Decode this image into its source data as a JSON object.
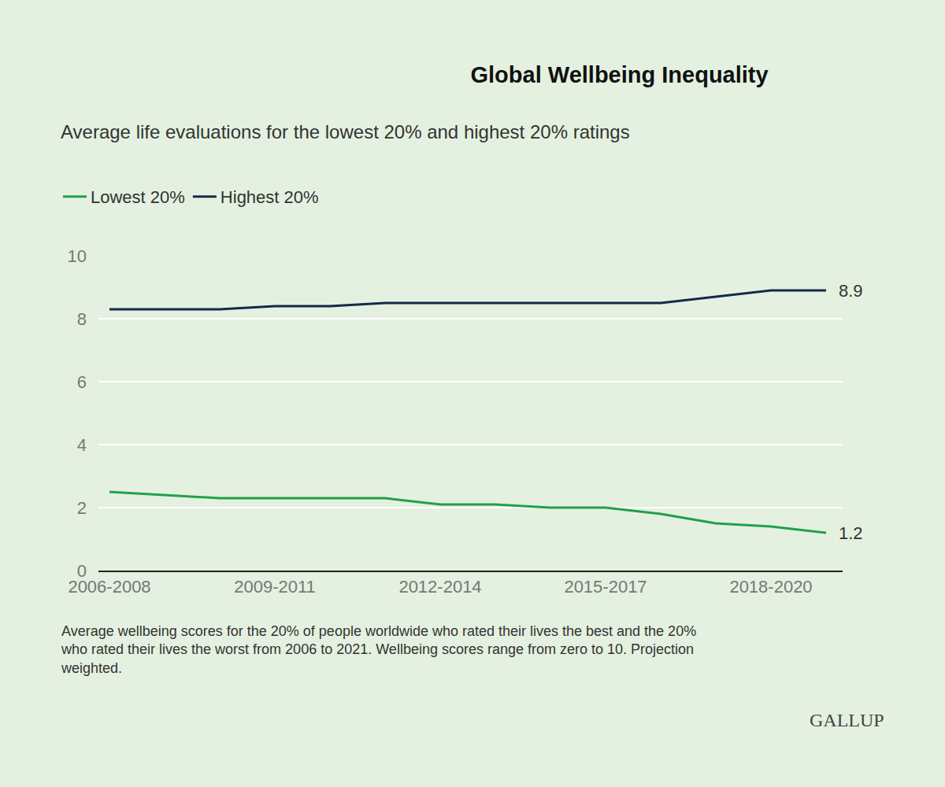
{
  "chart_data": {
    "type": "line",
    "title": "Global Wellbeing Inequality",
    "subtitle": "Average life evaluations for the lowest 20% and highest 20% ratings",
    "note": [
      "Average wellbeing scores for the 20% of people worldwide who rated their lives the best and the 20%",
      "who rated their lives the worst from 2006 to 2021. Wellbeing scores range from zero to 10. Projection",
      "weighted."
    ],
    "source": "GALLUP",
    "categories": [
      "2006-2008",
      null,
      null,
      "2009-2011",
      null,
      null,
      "2012-2014",
      null,
      null,
      "2015-2017",
      null,
      null,
      "2018-2020",
      null
    ],
    "series": [
      {
        "name": "Lowest 20%",
        "color": "#22a04b",
        "values": [
          2.5,
          2.4,
          2.3,
          2.3,
          2.3,
          2.3,
          2.1,
          2.1,
          2.0,
          2.0,
          1.8,
          1.5,
          1.4,
          1.2
        ]
      },
      {
        "name": "Highest 20%",
        "color": "#14284b",
        "values": [
          8.3,
          8.3,
          8.3,
          8.4,
          8.4,
          8.5,
          8.5,
          8.5,
          8.5,
          8.5,
          8.5,
          8.7,
          8.9,
          8.9
        ]
      }
    ],
    "annotations": [
      {
        "text": "8.9",
        "series": "Highest 20%"
      },
      {
        "text": "1.2",
        "series": "Lowest 20%"
      }
    ],
    "ylim": [
      0,
      10
    ],
    "yticks": [
      0,
      2,
      4,
      6,
      8,
      10
    ],
    "grid": true,
    "legend": "top-left"
  }
}
